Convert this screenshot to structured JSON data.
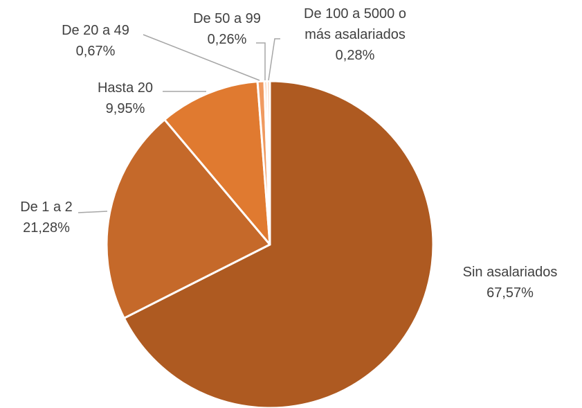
{
  "chart_data": {
    "type": "pie",
    "categories": [
      "Sin asalariados",
      "De 1 a 2",
      "Hasta 20",
      "De 20 a 49",
      "De 50 a 99",
      "De 100 a 5000 o más asalariados"
    ],
    "values": [
      67.57,
      21.28,
      9.95,
      0.67,
      0.26,
      0.28
    ],
    "value_labels": [
      "67,57%",
      "21,28%",
      "9,95%",
      "0,67%",
      "0,26%",
      "0,28%"
    ],
    "colors": [
      "#ae5a21",
      "#c5692a",
      "#e07a30",
      "#f09a60",
      "#f4b183",
      "#f8cbad"
    ]
  }
}
